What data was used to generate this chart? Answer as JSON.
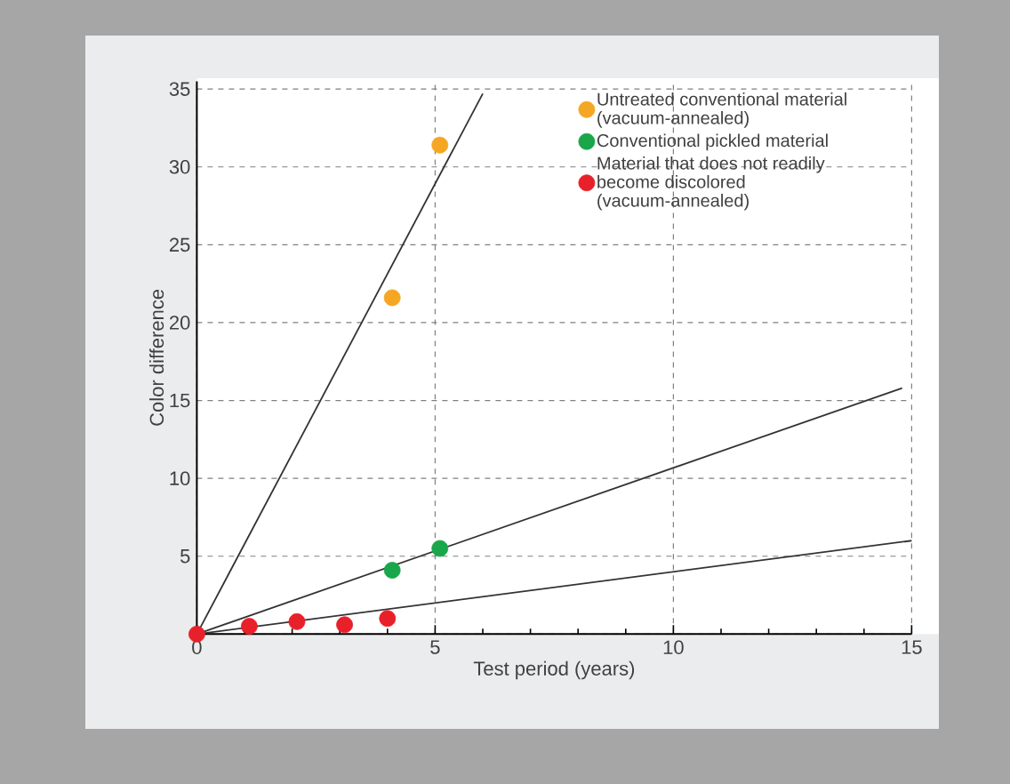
{
  "chart_data": {
    "type": "scatter",
    "xlabel": "Test period (years)",
    "ylabel": "Color difference",
    "xlim": [
      0,
      15
    ],
    "ylim": [
      0,
      35.5
    ],
    "xticks": [
      0,
      5,
      10,
      15
    ],
    "yticks": [
      {
        "value": 0,
        "label": null
      },
      5,
      10,
      15,
      20,
      25,
      30,
      35
    ],
    "grid": true,
    "legend": "top right",
    "series": [
      {
        "name": "Untreated conventional material (vacuum-annealed)",
        "marker": "circle",
        "color": "#f5a623",
        "x": [
          4.1,
          5.1
        ],
        "values": [
          21.6,
          31.4
        ]
      },
      {
        "name": "Conventional pickled material",
        "marker": "circle",
        "color": "#1aa64a",
        "x": [
          4.1,
          5.1
        ],
        "values": [
          4.1,
          5.5
        ]
      },
      {
        "name": "Material that does not readily become discolored (vacuum-annealed)",
        "marker": "circle",
        "color": "#e8202a",
        "x": [
          0,
          1.1,
          2.1,
          3.1,
          4.0
        ],
        "values": [
          0,
          0.5,
          0.8,
          0.6,
          1.0
        ]
      },
      {
        "type": "line",
        "marker": "none",
        "color": "#333333",
        "x": [
          0,
          6.0
        ],
        "values": [
          0,
          34.7
        ]
      },
      {
        "type": "line",
        "marker": "none",
        "color": "#333333",
        "x": [
          0,
          14.8
        ],
        "values": [
          0,
          15.8
        ]
      },
      {
        "type": "line",
        "marker": "none",
        "color": "#333333",
        "x": [
          0,
          15.0
        ],
        "values": [
          0,
          6.0
        ]
      }
    ]
  }
}
